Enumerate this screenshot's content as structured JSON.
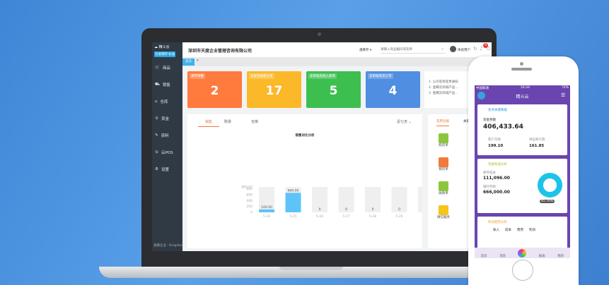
{
  "app": {
    "logo": "精斗云",
    "edition": "云进销存·标准",
    "company": "深圳市天度企业管理咨询有限公司",
    "warehouse_select": "選库存",
    "search_placeholder": "请输入商品编码或名称",
    "user": "体验用户",
    "notif_count": "9",
    "home_tab": "首页",
    "footer": "金蝶企业 · Kingdee"
  },
  "sidebar": [
    {
      "label": "商品",
      "icon": "cart-icon"
    },
    {
      "label": "销售",
      "icon": "sales-icon"
    },
    {
      "label": "仓库",
      "icon": "warehouse-icon"
    },
    {
      "label": "资金",
      "icon": "money-icon"
    },
    {
      "label": "资料",
      "icon": "pencil-icon"
    },
    {
      "label": "云POS",
      "icon": "pos-icon"
    },
    {
      "label": "设置",
      "icon": "gear-icon"
    }
  ],
  "cards": [
    {
      "title": "库存预警",
      "value": "2",
      "color": "#ff7a3d"
    },
    {
      "title": "未发货销售订单",
      "value": "17",
      "color": "#fbb829"
    },
    {
      "title": "未审核其他入库单",
      "value": "5",
      "color": "#3cbf4f"
    },
    {
      "title": "未审核购货订单",
      "value": "4",
      "color": "#4f8ee0"
    }
  ],
  "notices": [
    "1. 公司名称变更通知",
    "2. 金蝶云商城产品...",
    "3. 金蝶云商城产品..."
  ],
  "chart_tabs": [
    "销售",
    "购货",
    "仓库"
  ],
  "range_select": "近七天",
  "chart_data": {
    "type": "bar",
    "title": "销售对比分析",
    "categories": [
      "5-24",
      "5-25",
      "5-26",
      "5-27",
      "5-28",
      "5-29",
      "5-30"
    ],
    "values": [
      100,
      660,
      0,
      0,
      0,
      0,
      0
    ],
    "value_labels": [
      "100.00",
      "660.00",
      "0",
      "0",
      "0",
      "0",
      "0"
    ],
    "yticks": [
      "0",
      "200",
      "400",
      "600",
      "800"
    ],
    "ymax_label": "860.07",
    "ylim": [
      0,
      860
    ],
    "color": "#5ec4f8"
  },
  "right_tabs": [
    "常用功能",
    "关键指标"
  ],
  "quick": [
    {
      "label": "购货单",
      "color": "#8cc63f"
    },
    {
      "label": "销货单",
      "color": "#f07a3a"
    },
    {
      "label": "收款单",
      "color": "#8cc63f"
    },
    {
      "label": "微信服务",
      "color": "#f5c518"
    }
  ],
  "phone": {
    "status_left": "中国联通",
    "time": "16:34",
    "battery": "74%",
    "title": "精斗云",
    "card1": {
      "title": "各项关键数据",
      "balance_label": "资金余额",
      "balance": "406,433.64",
      "a_label": "客户欠款",
      "a": "199.10",
      "b_label": "供应商欠款",
      "b": "161.85"
    },
    "card2": {
      "title": "资金构成分析",
      "c_label": "库存成本",
      "c": "111,096.00",
      "d_label": "银行存款",
      "d": "666,000.00",
      "pct": "45.76%"
    },
    "card3": {
      "title": "利润趋势分析",
      "legend": [
        "收入",
        "成本",
        "费用",
        "利润"
      ]
    },
    "nav": [
      "首页",
      "消息",
      "",
      "报表",
      "我的"
    ]
  }
}
